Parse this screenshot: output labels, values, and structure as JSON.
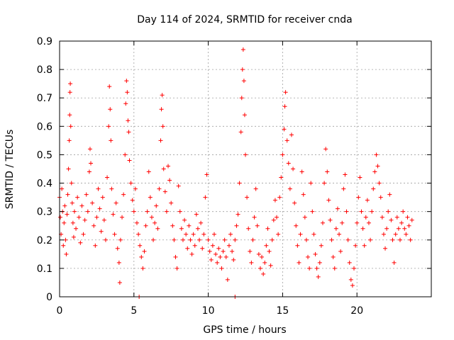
{
  "chart_data": {
    "type": "scatter",
    "title": "Day 114 of 2024, SRMTID for receiver cnda",
    "xlabel": "GPS time / hours",
    "ylabel": "SRMTID / TECUs",
    "xlim": [
      0,
      25
    ],
    "ylim": [
      0,
      0.9
    ],
    "xticks": [
      0,
      5,
      10,
      15,
      20
    ],
    "xtick_labels": [
      "0",
      "5",
      "10",
      "15",
      "20"
    ],
    "yticks": [
      0,
      0.1,
      0.2,
      0.3,
      0.4,
      0.5,
      0.6,
      0.7,
      0.8,
      0.9
    ],
    "ytick_labels": [
      "0",
      "0.1",
      "0.2",
      "0.3",
      "0.4",
      "0.5",
      "0.6",
      "0.7",
      "0.8",
      "0.9"
    ],
    "grid": true,
    "marker": "+",
    "color": "#ff0000",
    "series": [
      {
        "name": "SRMTID",
        "points": [
          [
            0.0,
            0.35
          ],
          [
            0.05,
            0.28
          ],
          [
            0.1,
            0.22
          ],
          [
            0.15,
            0.38
          ],
          [
            0.2,
            0.3
          ],
          [
            0.25,
            0.18
          ],
          [
            0.3,
            0.26
          ],
          [
            0.35,
            0.32
          ],
          [
            0.4,
            0.2
          ],
          [
            0.45,
            0.15
          ],
          [
            0.5,
            0.29
          ],
          [
            0.55,
            0.36
          ],
          [
            0.6,
            0.45
          ],
          [
            0.65,
            0.55
          ],
          [
            0.68,
            0.64
          ],
          [
            0.7,
            0.72
          ],
          [
            0.72,
            0.75
          ],
          [
            0.75,
            0.6
          ],
          [
            0.8,
            0.4
          ],
          [
            0.85,
            0.33
          ],
          [
            0.9,
            0.26
          ],
          [
            0.95,
            0.21
          ],
          [
            1.0,
            0.3
          ],
          [
            1.1,
            0.24
          ],
          [
            1.2,
            0.35
          ],
          [
            1.3,
            0.28
          ],
          [
            1.4,
            0.19
          ],
          [
            1.5,
            0.32
          ],
          [
            1.6,
            0.22
          ],
          [
            1.7,
            0.27
          ],
          [
            1.8,
            0.36
          ],
          [
            1.9,
            0.3
          ],
          [
            2.0,
            0.44
          ],
          [
            2.05,
            0.52
          ],
          [
            2.1,
            0.47
          ],
          [
            2.2,
            0.33
          ],
          [
            2.3,
            0.25
          ],
          [
            2.4,
            0.18
          ],
          [
            2.5,
            0.28
          ],
          [
            2.6,
            0.38
          ],
          [
            2.7,
            0.31
          ],
          [
            2.8,
            0.23
          ],
          [
            2.9,
            0.35
          ],
          [
            3.0,
            0.27
          ],
          [
            3.1,
            0.2
          ],
          [
            3.2,
            0.42
          ],
          [
            3.3,
            0.6
          ],
          [
            3.35,
            0.74
          ],
          [
            3.4,
            0.66
          ],
          [
            3.45,
            0.55
          ],
          [
            3.5,
            0.38
          ],
          [
            3.6,
            0.29
          ],
          [
            3.7,
            0.22
          ],
          [
            3.8,
            0.33
          ],
          [
            3.9,
            0.17
          ],
          [
            4.0,
            0.12
          ],
          [
            4.05,
            0.05
          ],
          [
            4.1,
            0.2
          ],
          [
            4.2,
            0.28
          ],
          [
            4.3,
            0.36
          ],
          [
            4.4,
            0.5
          ],
          [
            4.45,
            0.68
          ],
          [
            4.5,
            0.76
          ],
          [
            4.55,
            0.72
          ],
          [
            4.6,
            0.62
          ],
          [
            4.65,
            0.58
          ],
          [
            4.7,
            0.48
          ],
          [
            4.8,
            0.4
          ],
          [
            4.9,
            0.34
          ],
          [
            5.0,
            0.3
          ],
          [
            5.1,
            0.38
          ],
          [
            5.2,
            0.26
          ],
          [
            5.3,
            0.22
          ],
          [
            5.4,
            0.18
          ],
          [
            5.5,
            0.14
          ],
          [
            5.6,
            0.1
          ],
          [
            5.7,
            0.16
          ],
          [
            5.8,
            0.25
          ],
          [
            5.9,
            0.3
          ],
          [
            6.0,
            0.44
          ],
          [
            6.1,
            0.35
          ],
          [
            6.2,
            0.28
          ],
          [
            6.3,
            0.2
          ],
          [
            6.4,
            0.26
          ],
          [
            6.5,
            0.32
          ],
          [
            6.6,
            0.24
          ],
          [
            6.7,
            0.38
          ],
          [
            6.8,
            0.55
          ],
          [
            6.85,
            0.66
          ],
          [
            6.9,
            0.71
          ],
          [
            6.95,
            0.6
          ],
          [
            7.0,
            0.45
          ],
          [
            7.1,
            0.37
          ],
          [
            7.2,
            0.3
          ],
          [
            7.3,
            0.46
          ],
          [
            7.4,
            0.41
          ],
          [
            7.5,
            0.33
          ],
          [
            7.6,
            0.25
          ],
          [
            7.7,
            0.2
          ],
          [
            7.8,
            0.14
          ],
          [
            7.9,
            0.1
          ],
          [
            8.0,
            0.39
          ],
          [
            8.1,
            0.3
          ],
          [
            8.2,
            0.24
          ],
          [
            8.3,
            0.2
          ],
          [
            8.4,
            0.27
          ],
          [
            8.5,
            0.22
          ],
          [
            8.6,
            0.17
          ],
          [
            8.7,
            0.25
          ],
          [
            8.8,
            0.2
          ],
          [
            8.9,
            0.15
          ],
          [
            9.0,
            0.22
          ],
          [
            9.1,
            0.18
          ],
          [
            9.2,
            0.29
          ],
          [
            9.3,
            0.24
          ],
          [
            9.4,
            0.2
          ],
          [
            9.5,
            0.26
          ],
          [
            9.6,
            0.17
          ],
          [
            9.7,
            0.22
          ],
          [
            9.8,
            0.35
          ],
          [
            9.9,
            0.43
          ],
          [
            10.0,
            0.2
          ],
          [
            10.1,
            0.16
          ],
          [
            10.2,
            0.13
          ],
          [
            10.3,
            0.18
          ],
          [
            10.4,
            0.22
          ],
          [
            10.5,
            0.15
          ],
          [
            10.6,
            0.12
          ],
          [
            10.7,
            0.17
          ],
          [
            10.8,
            0.14
          ],
          [
            10.9,
            0.1
          ],
          [
            11.0,
            0.16
          ],
          [
            11.1,
            0.2
          ],
          [
            11.2,
            0.14
          ],
          [
            11.3,
            0.06
          ],
          [
            11.4,
            0.18
          ],
          [
            11.5,
            0.22
          ],
          [
            11.6,
            0.16
          ],
          [
            11.7,
            0.13
          ],
          [
            11.8,
            0.2
          ],
          [
            11.9,
            0.25
          ],
          [
            12.0,
            0.29
          ],
          [
            12.1,
            0.4
          ],
          [
            12.2,
            0.58
          ],
          [
            12.25,
            0.7
          ],
          [
            12.3,
            0.8
          ],
          [
            12.35,
            0.87
          ],
          [
            12.4,
            0.76
          ],
          [
            12.45,
            0.64
          ],
          [
            12.5,
            0.5
          ],
          [
            12.6,
            0.35
          ],
          [
            12.7,
            0.24
          ],
          [
            12.8,
            0.16
          ],
          [
            12.9,
            0.12
          ],
          [
            13.0,
            0.2
          ],
          [
            13.1,
            0.28
          ],
          [
            13.2,
            0.38
          ],
          [
            13.3,
            0.25
          ],
          [
            13.4,
            0.15
          ],
          [
            13.5,
            0.1
          ],
          [
            13.6,
            0.14
          ],
          [
            13.7,
            0.08
          ],
          [
            13.8,
            0.12
          ],
          [
            13.9,
            0.18
          ],
          [
            14.0,
            0.24
          ],
          [
            14.1,
            0.16
          ],
          [
            14.2,
            0.11
          ],
          [
            14.3,
            0.2
          ],
          [
            14.4,
            0.27
          ],
          [
            14.5,
            0.34
          ],
          [
            14.6,
            0.28
          ],
          [
            14.7,
            0.22
          ],
          [
            14.8,
            0.35
          ],
          [
            14.9,
            0.42
          ],
          [
            15.0,
            0.5
          ],
          [
            15.1,
            0.59
          ],
          [
            15.15,
            0.67
          ],
          [
            15.2,
            0.72
          ],
          [
            15.3,
            0.55
          ],
          [
            15.4,
            0.47
          ],
          [
            15.5,
            0.38
          ],
          [
            15.6,
            0.57
          ],
          [
            15.7,
            0.45
          ],
          [
            15.8,
            0.33
          ],
          [
            15.9,
            0.25
          ],
          [
            16.0,
            0.18
          ],
          [
            16.1,
            0.12
          ],
          [
            16.2,
            0.22
          ],
          [
            16.3,
            0.44
          ],
          [
            16.4,
            0.36
          ],
          [
            16.5,
            0.28
          ],
          [
            16.6,
            0.2
          ],
          [
            16.7,
            0.14
          ],
          [
            16.8,
            0.1
          ],
          [
            16.9,
            0.4
          ],
          [
            17.0,
            0.3
          ],
          [
            17.1,
            0.22
          ],
          [
            17.2,
            0.15
          ],
          [
            17.3,
            0.1
          ],
          [
            17.4,
            0.07
          ],
          [
            17.5,
            0.12
          ],
          [
            17.6,
            0.18
          ],
          [
            17.7,
            0.26
          ],
          [
            17.8,
            0.4
          ],
          [
            17.9,
            0.52
          ],
          [
            18.0,
            0.44
          ],
          [
            18.1,
            0.34
          ],
          [
            18.2,
            0.27
          ],
          [
            18.3,
            0.2
          ],
          [
            18.4,
            0.14
          ],
          [
            18.5,
            0.1
          ],
          [
            18.6,
            0.24
          ],
          [
            18.7,
            0.31
          ],
          [
            18.8,
            0.22
          ],
          [
            18.9,
            0.16
          ],
          [
            19.0,
            0.26
          ],
          [
            19.1,
            0.38
          ],
          [
            19.2,
            0.43
          ],
          [
            19.3,
            0.3
          ],
          [
            19.4,
            0.2
          ],
          [
            19.5,
            0.12
          ],
          [
            19.6,
            0.06
          ],
          [
            19.7,
            0.04
          ],
          [
            19.8,
            0.1
          ],
          [
            19.9,
            0.18
          ],
          [
            20.0,
            0.26
          ],
          [
            20.1,
            0.35
          ],
          [
            20.2,
            0.42
          ],
          [
            20.3,
            0.3
          ],
          [
            20.4,
            0.24
          ],
          [
            20.5,
            0.18
          ],
          [
            20.6,
            0.28
          ],
          [
            20.7,
            0.34
          ],
          [
            20.8,
            0.26
          ],
          [
            20.9,
            0.2
          ],
          [
            21.0,
            0.3
          ],
          [
            21.1,
            0.38
          ],
          [
            21.2,
            0.44
          ],
          [
            21.3,
            0.5
          ],
          [
            21.4,
            0.46
          ],
          [
            21.5,
            0.4
          ],
          [
            21.6,
            0.35
          ],
          [
            21.7,
            0.28
          ],
          [
            21.8,
            0.22
          ],
          [
            21.9,
            0.17
          ],
          [
            22.0,
            0.24
          ],
          [
            22.1,
            0.3
          ],
          [
            22.2,
            0.36
          ],
          [
            22.3,
            0.27
          ],
          [
            22.4,
            0.2
          ],
          [
            22.5,
            0.12
          ],
          [
            22.6,
            0.22
          ],
          [
            22.7,
            0.28
          ],
          [
            22.8,
            0.24
          ],
          [
            22.9,
            0.2
          ],
          [
            23.0,
            0.26
          ],
          [
            23.1,
            0.3
          ],
          [
            23.2,
            0.24
          ],
          [
            23.3,
            0.22
          ],
          [
            23.4,
            0.28
          ],
          [
            23.5,
            0.25
          ],
          [
            23.6,
            0.2
          ],
          [
            23.7,
            0.27
          ],
          [
            5.35,
            0.0
          ],
          [
            11.8,
            0.0
          ]
        ]
      }
    ]
  }
}
